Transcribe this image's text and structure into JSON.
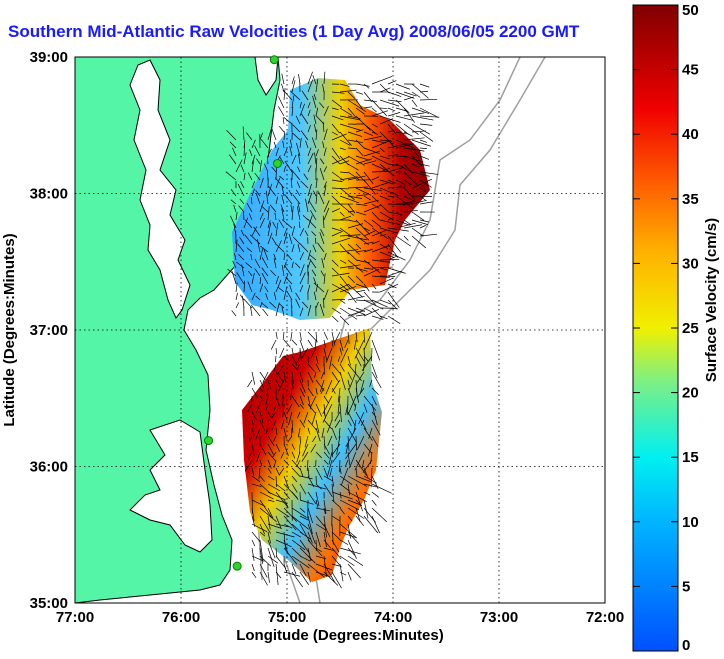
{
  "title": "Southern Mid-Atlantic Raw Velocities (1 Day Avg) 2008/06/05 2200 GMT",
  "colors": {
    "land": "#55f5a8",
    "land_stroke": "#000000",
    "bathymetry": "#a0a0a0",
    "grid": "#000000",
    "station": "#2ad62a",
    "title": "#1a1aff"
  },
  "chart_data": {
    "type": "heatmap",
    "xlabel": "Longitude (Degrees:Minutes)",
    "ylabel": "Latitude (Degrees:Minutes)",
    "xlim": [
      -77,
      -72
    ],
    "ylim": [
      35,
      39
    ],
    "x_ticks": [
      {
        "value": -77,
        "label": "77:00"
      },
      {
        "value": -76,
        "label": "76:00"
      },
      {
        "value": -75,
        "label": "75:00"
      },
      {
        "value": -74,
        "label": "74:00"
      },
      {
        "value": -73,
        "label": "73:00"
      },
      {
        "value": -72,
        "label": "72:00"
      }
    ],
    "y_ticks": [
      {
        "value": 35,
        "label": "35:00"
      },
      {
        "value": 36,
        "label": "36:00"
      },
      {
        "value": 37,
        "label": "37:00"
      },
      {
        "value": 38,
        "label": "38:00"
      },
      {
        "value": 39,
        "label": "39:00"
      }
    ],
    "grid": true,
    "colorbar": {
      "label": "Surface Velocity (cm/s)",
      "min": 0,
      "max": 50,
      "ticks": [
        0,
        5,
        10,
        15,
        20,
        25,
        30,
        35,
        40,
        45,
        50
      ]
    },
    "stations": [
      {
        "lon": -75.12,
        "lat": 38.98
      },
      {
        "lon": -75.09,
        "lat": 38.22
      },
      {
        "lon": -75.74,
        "lat": 36.19
      },
      {
        "lon": -75.47,
        "lat": 35.27
      }
    ]
  }
}
